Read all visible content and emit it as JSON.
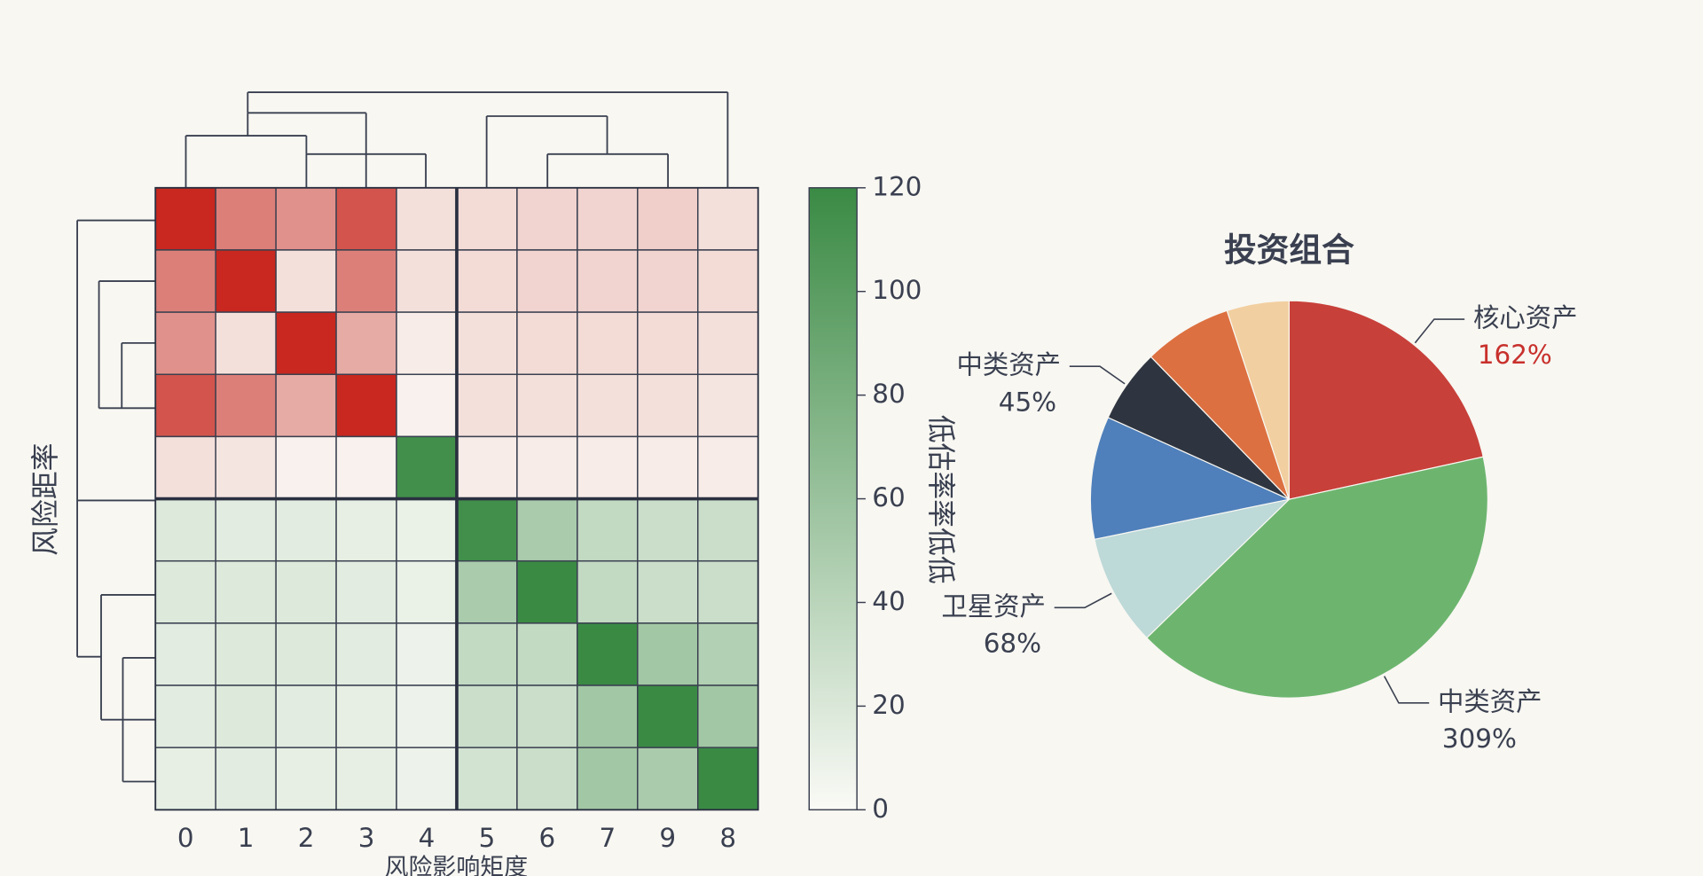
{
  "chart_data": [
    {
      "type": "heatmap",
      "x_label": "风险影响矩度",
      "y_label": "风险距率",
      "colorbar_label": "低估率率低低",
      "categories": [
        "0",
        "1",
        "2",
        "3",
        "4",
        "5",
        "6",
        "7",
        "9",
        "8"
      ],
      "values": [
        [
          120,
          70,
          60,
          95,
          15,
          18,
          22,
          22,
          25,
          15
        ],
        [
          70,
          120,
          15,
          70,
          15,
          18,
          22,
          22,
          22,
          18
        ],
        [
          60,
          15,
          120,
          45,
          8,
          15,
          18,
          18,
          18,
          15
        ],
        [
          95,
          70,
          45,
          120,
          5,
          15,
          15,
          15,
          15,
          12
        ],
        [
          15,
          12,
          5,
          5,
          115,
          8,
          8,
          8,
          8,
          8
        ],
        [
          18,
          15,
          15,
          12,
          10,
          115,
          50,
          35,
          30,
          30
        ],
        [
          18,
          18,
          18,
          15,
          10,
          50,
          120,
          35,
          30,
          30
        ],
        [
          15,
          18,
          18,
          15,
          8,
          35,
          35,
          120,
          55,
          45
        ],
        [
          15,
          18,
          15,
          12,
          8,
          30,
          30,
          55,
          120,
          55
        ],
        [
          12,
          15,
          12,
          12,
          8,
          25,
          30,
          55,
          50,
          120
        ]
      ],
      "cell_colors": [
        [
          "#c8281f",
          "#c8281f",
          "#c8281f",
          "#c8281f",
          "#c8281f",
          "#c8281f",
          "#c8281f",
          "#c8281f",
          "#c8281f",
          "#c8281f"
        ],
        [
          "#c8281f",
          "#c8281f",
          "#c8281f",
          "#c8281f",
          "#c8281f",
          "#c8281f",
          "#c8281f",
          "#c8281f",
          "#c8281f",
          "#c8281f"
        ],
        [
          "#c8281f",
          "#c8281f",
          "#c8281f",
          "#c8281f",
          "#c8281f",
          "#c8281f",
          "#c8281f",
          "#c8281f",
          "#c8281f",
          "#c8281f"
        ],
        [
          "#c8281f",
          "#c8281f",
          "#c8281f",
          "#c8281f",
          "#c8281f",
          "#c8281f",
          "#c8281f",
          "#c8281f",
          "#c8281f",
          "#c8281f"
        ],
        [
          "#c8281f",
          "#c8281f",
          "#c8281f",
          "#c8281f",
          "#3a8a44",
          "#c8281f",
          "#c8281f",
          "#c8281f",
          "#c8281f",
          "#c8281f"
        ],
        [
          "#3a8a44",
          "#3a8a44",
          "#3a8a44",
          "#3a8a44",
          "#3a8a44",
          "#3a8a44",
          "#3a8a44",
          "#3a8a44",
          "#3a8a44",
          "#3a8a44"
        ],
        [
          "#3a8a44",
          "#3a8a44",
          "#3a8a44",
          "#3a8a44",
          "#3a8a44",
          "#3a8a44",
          "#3a8a44",
          "#3a8a44",
          "#3a8a44",
          "#3a8a44"
        ],
        [
          "#3a8a44",
          "#3a8a44",
          "#3a8a44",
          "#3a8a44",
          "#3a8a44",
          "#3a8a44",
          "#3a8a44",
          "#3a8a44",
          "#3a8a44",
          "#3a8a44"
        ],
        [
          "#3a8a44",
          "#3a8a44",
          "#3a8a44",
          "#3a8a44",
          "#3a8a44",
          "#3a8a44",
          "#3a8a44",
          "#3a8a44",
          "#3a8a44",
          "#3a8a44"
        ],
        [
          "#3a8a44",
          "#3a8a44",
          "#3a8a44",
          "#3a8a44",
          "#3a8a44",
          "#3a8a44",
          "#3a8a44",
          "#3a8a44",
          "#3a8a44",
          "#3a8a44"
        ]
      ],
      "colorbar_color": "#3a8a44",
      "colorbar_lim": [
        0,
        120
      ],
      "colorbar_ticks": [
        0,
        20,
        40,
        60,
        80,
        100,
        120
      ]
    },
    {
      "type": "pie",
      "title": "投资组合",
      "categories": [
        "核心资产",
        "中类资产",
        "卫星资产",
        null,
        "中类资产",
        null,
        null
      ],
      "values": [
        162,
        309,
        68,
        75,
        45,
        54,
        38
      ],
      "value_labels": [
        "162%",
        "309%",
        "68%",
        null,
        "45%",
        null,
        null
      ],
      "colors": [
        "#c8403a",
        "#6db56f",
        "#bdd9d8",
        "#4f80bb",
        "#2f3540",
        "#dd7040",
        "#f2cfa0"
      ],
      "value_label_colors": [
        "#c8302c",
        "#3a4050",
        "#3a4050",
        null,
        "#3a4050",
        null,
        null
      ]
    }
  ]
}
